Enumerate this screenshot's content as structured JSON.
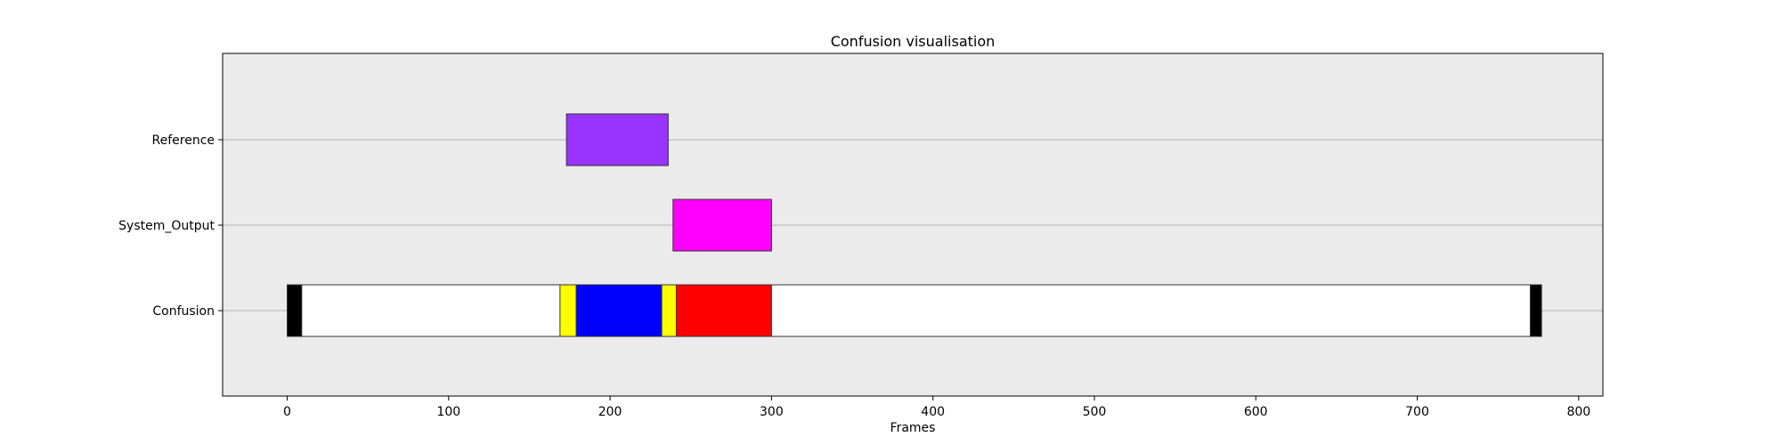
{
  "chart_data": {
    "type": "timeline",
    "title": "Confusion visualisation",
    "xlabel": "Frames",
    "ylabel": "",
    "xlim": [
      -40,
      815
    ],
    "xticks": [
      0,
      100,
      200,
      300,
      400,
      500,
      600,
      700,
      800
    ],
    "xtick_labels": [
      "0",
      "100",
      "200",
      "300",
      "400",
      "500",
      "600",
      "700",
      "800"
    ],
    "rows": [
      "Reference",
      "System_Output",
      "Confusion"
    ],
    "grid": "horizontal",
    "plot_background": "#ebebeb",
    "series": [
      {
        "row": "Reference",
        "segments": [
          {
            "start": 173,
            "end": 236,
            "color": "#9933ff"
          }
        ]
      },
      {
        "row": "System_Output",
        "segments": [
          {
            "start": 239,
            "end": 300,
            "color": "#ff00ff"
          }
        ]
      },
      {
        "row": "Confusion",
        "segments": [
          {
            "start": 0,
            "end": 9,
            "color": "#000000"
          },
          {
            "start": 9,
            "end": 169,
            "color": "#ffffff"
          },
          {
            "start": 169,
            "end": 179,
            "color": "#ffff00"
          },
          {
            "start": 179,
            "end": 232,
            "color": "#0000ff"
          },
          {
            "start": 232,
            "end": 241,
            "color": "#ffff00"
          },
          {
            "start": 241,
            "end": 300,
            "color": "#ff0000"
          },
          {
            "start": 300,
            "end": 770,
            "color": "#ffffff"
          },
          {
            "start": 770,
            "end": 777,
            "color": "#000000"
          }
        ]
      }
    ]
  }
}
